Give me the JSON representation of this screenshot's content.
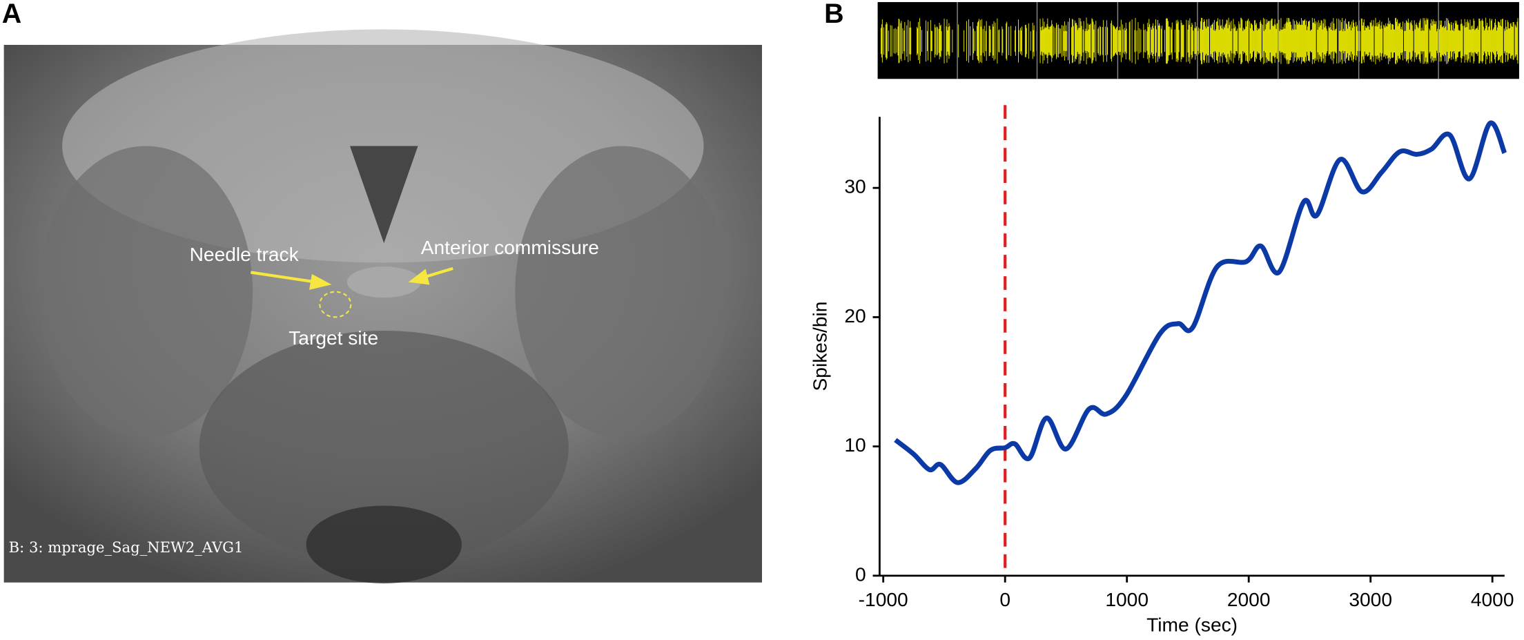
{
  "panel_a": {
    "label": "A",
    "annotations": [
      "Needle track",
      "Anterior commissure",
      "Target site"
    ],
    "caption": "B: 3: mprage_Sag_NEW2_AVG1"
  },
  "panel_b": {
    "label": "B"
  },
  "chart_data": {
    "type": "line",
    "xlabel": "Time (sec)",
    "ylabel": "Spikes/bin",
    "x": [
      -900,
      -750,
      -620,
      -530,
      -390,
      -240,
      -120,
      0,
      80,
      200,
      340,
      500,
      690,
      830,
      990,
      1270,
      1420,
      1540,
      1740,
      1980,
      2100,
      2250,
      2450,
      2560,
      2750,
      2930,
      3090,
      3240,
      3380,
      3500,
      3650,
      3810,
      3980,
      4100
    ],
    "series": [
      {
        "name": "Spikes/bin",
        "color": "#0b3aa6",
        "values": [
          10.5,
          9.4,
          8.2,
          8.6,
          7.2,
          8.3,
          9.7,
          9.9,
          10.2,
          9.1,
          12.2,
          9.8,
          12.9,
          12.5,
          13.9,
          18.7,
          19.5,
          19.2,
          23.9,
          24.3,
          25.5,
          23.5,
          28.9,
          27.9,
          32.2,
          29.7,
          31.2,
          32.8,
          32.6,
          33.0,
          34.1,
          30.7,
          35.0,
          32.7
        ]
      }
    ],
    "xlim": [
      -1030,
      4100
    ],
    "ylim": [
      0,
      35.5
    ],
    "xticks": [
      -1000,
      0,
      1000,
      2000,
      3000,
      4000
    ],
    "yticks": [
      0,
      10,
      20,
      30
    ],
    "vline": {
      "x": 0,
      "color": "#e02020"
    }
  }
}
